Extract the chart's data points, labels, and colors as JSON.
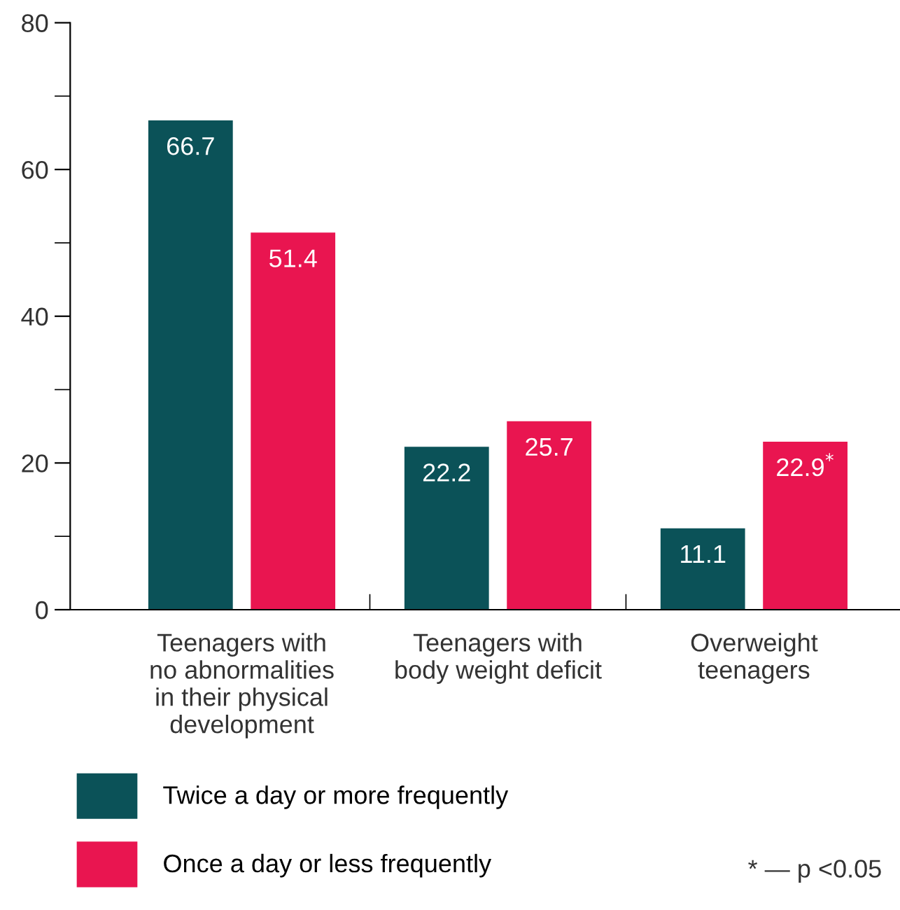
{
  "chart_data": {
    "type": "bar",
    "categories": [
      "Teenagers with\nno abnormalities\nin their physical\ndevelopment",
      "Teenagers with\nbody weight deficit",
      "Overweight\nteenagers"
    ],
    "series": [
      {
        "name": "Twice a day or more frequently",
        "color": "#0b5258",
        "values": [
          66.7,
          22.2,
          11.1
        ],
        "value_labels": [
          "66.7",
          "22.2",
          "11.1"
        ]
      },
      {
        "name": "Once a day or less frequently",
        "color": "#e91550",
        "values": [
          51.4,
          25.7,
          22.9
        ],
        "value_labels": [
          "51.4",
          "25.7",
          "22.9$^{*}$"
        ]
      }
    ],
    "ylim": [
      0,
      80
    ],
    "yticks": [
      0,
      {
        "value": 10,
        "label": null
      },
      20,
      {
        "value": 30,
        "label": null
      },
      40,
      {
        "value": 50,
        "label": null
      },
      60,
      {
        "value": 70,
        "label": null
      },
      80
    ],
    "legend": "bottom left",
    "annotations": [
      "* — p <0.05"
    ]
  }
}
